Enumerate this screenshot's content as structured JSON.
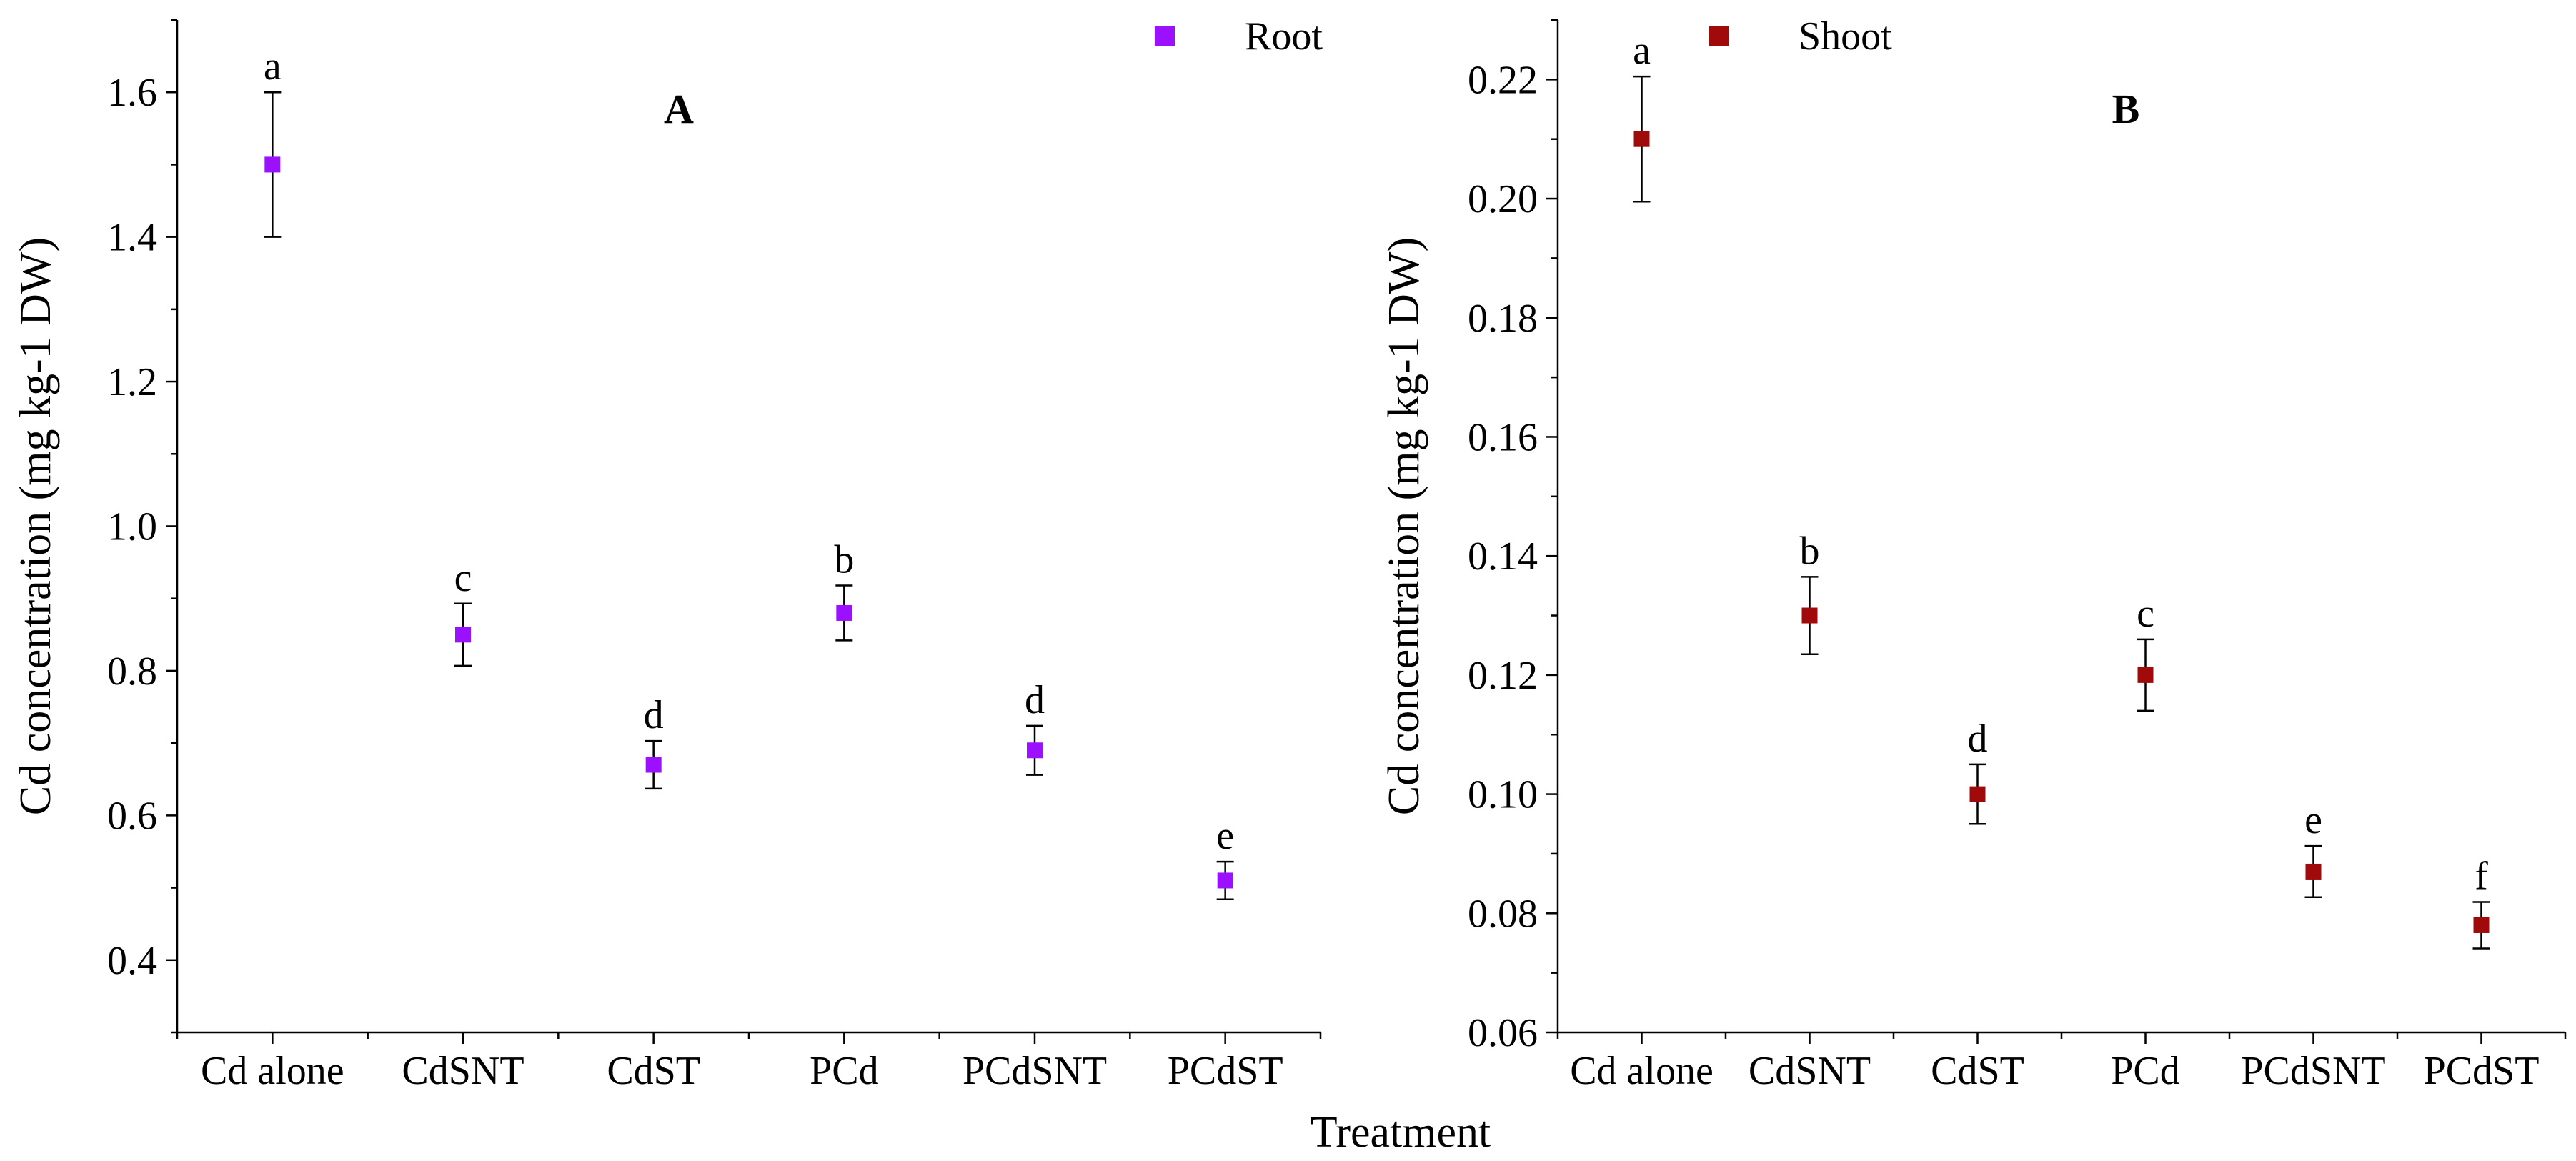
{
  "x_axis_title": "Treatment",
  "chart_data": [
    {
      "type": "scatter",
      "panel_label": "A",
      "ylabel": "Cd concentration (mg kg-1 DW)",
      "xlabel": "Treatment",
      "categories": [
        "Cd alone",
        "CdSNT",
        "CdST",
        "PCd",
        "PCdSNT",
        "PCdST"
      ],
      "ylim": [
        0.3,
        1.7
      ],
      "yticks": [
        "0.4",
        "0.6",
        "0.8",
        "1.0",
        "1.2",
        "1.4",
        "1.6"
      ],
      "ytick_values": [
        0.4,
        0.6,
        0.8,
        1.0,
        1.2,
        1.4,
        1.6
      ],
      "series": [
        {
          "name": "Root",
          "color": "#9b11ff",
          "values": [
            1.5,
            0.85,
            0.67,
            0.88,
            0.69,
            0.51
          ],
          "errors": [
            0.1,
            0.043,
            0.033,
            0.038,
            0.034,
            0.026
          ],
          "letters": [
            "a",
            "c",
            "d",
            "b",
            "d",
            "e"
          ]
        }
      ],
      "legend": "top-right"
    },
    {
      "type": "scatter",
      "panel_label": "B",
      "ylabel": "Cd concentration (mg kg-1 DW)",
      "xlabel": "Treatment",
      "categories": [
        "Cd alone",
        "CdSNT",
        "CdST",
        "PCd",
        "PCdSNT",
        "PCdST"
      ],
      "ylim": [
        0.06,
        0.23
      ],
      "yticks": [
        "0.06",
        "0.08",
        "0.10",
        "0.12",
        "0.14",
        "0.16",
        "0.18",
        "0.20",
        "0.22"
      ],
      "ytick_values": [
        0.06,
        0.08,
        0.1,
        0.12,
        0.14,
        0.16,
        0.18,
        0.2,
        0.22
      ],
      "series": [
        {
          "name": "Shoot",
          "color": "#a10a0a",
          "values": [
            0.21,
            0.13,
            0.1,
            0.12,
            0.087,
            0.078
          ],
          "errors": [
            0.0105,
            0.0065,
            0.005,
            0.006,
            0.0043,
            0.0039
          ],
          "letters": [
            "a",
            "b",
            "d",
            "c",
            "e",
            "f"
          ]
        }
      ],
      "legend": "top-left"
    }
  ]
}
